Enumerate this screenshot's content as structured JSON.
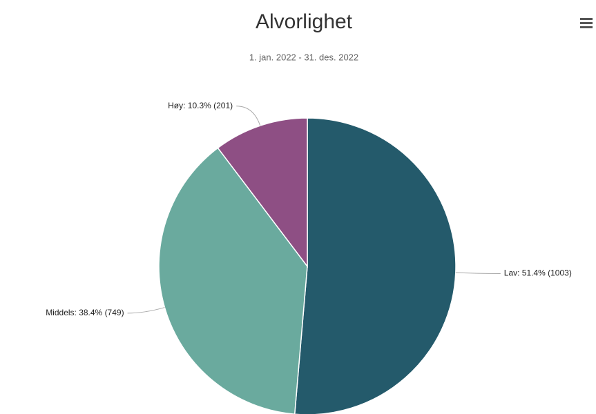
{
  "chart_data": {
    "type": "pie",
    "title": "Alvorlighet",
    "subtitle": "1. jan. 2022 - 31. des. 2022",
    "categories": [
      "Lav",
      "Middels",
      "Høy"
    ],
    "values": [
      1003,
      749,
      201
    ],
    "value_labels": [
      "Lav: 51.4% (1003)",
      "Middels: 38.4% (749)",
      "Høy: 10.3% (201)"
    ],
    "colors": [
      "#245a6b",
      "#6aaa9e",
      "#8e4f84"
    ]
  }
}
